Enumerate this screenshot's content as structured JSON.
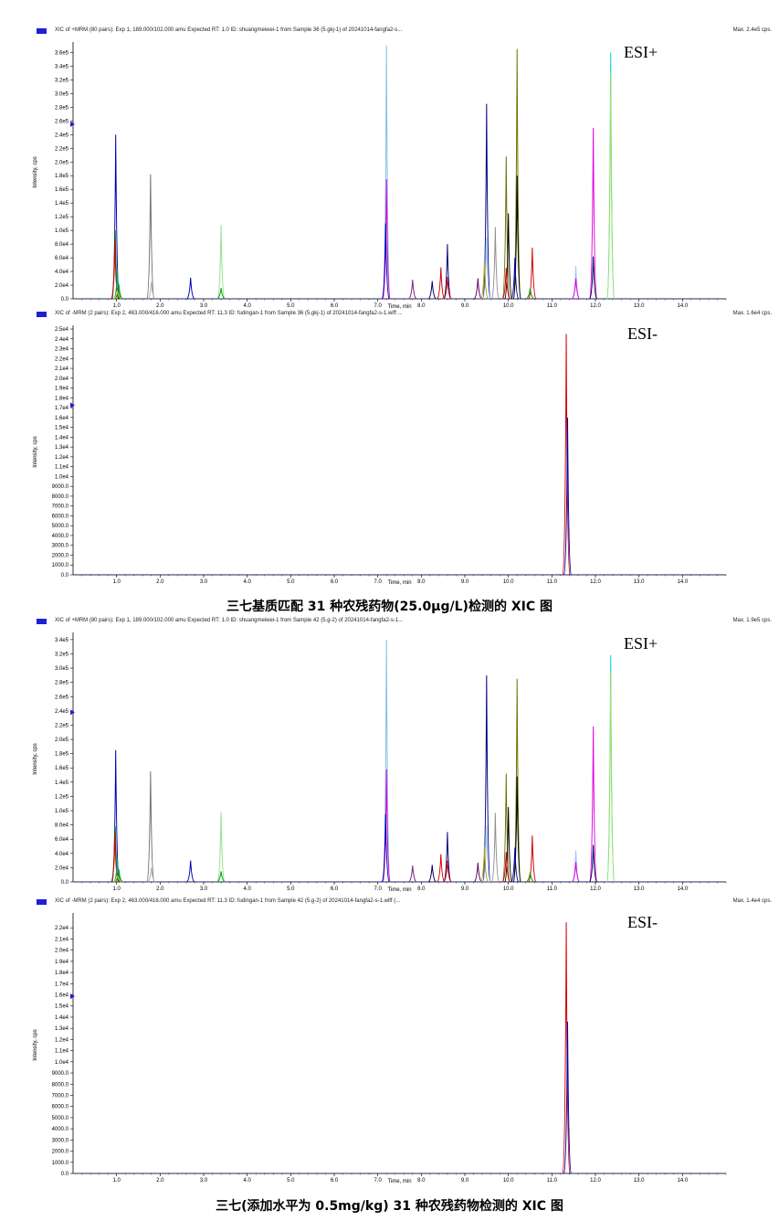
{
  "captions": {
    "first": "三七基质匹配 31 种农残药物(25.0μg/L)检测的 XIC 图",
    "second": "三七(添加水平为 0.5mg/kg) 31 种农残药物检测的 XIC 图"
  },
  "common": {
    "ylabel": "Intensity, cps",
    "xlabel": "Time, min"
  },
  "chart_data": [
    {
      "type": "line",
      "title": "XIC of +MRM (80 pairs): Exp 1, 189.000/102.000 amu Expected RT: 1.0 ID: shuangmeiwei-1 from Sample 36 (5.gkj-1) of 20241014-fangfa2-s...",
      "max_label": "Max. 2.4e5 cps.",
      "tag": "ESI+",
      "xlabel": "Time, min",
      "ylabel": "Intensity, cps",
      "xlim": [
        0,
        15.0
      ],
      "ylim": [
        0,
        370000
      ],
      "xticks": [
        "1.0",
        "2.0",
        "3.0",
        "4.0",
        "5.0",
        "6.0",
        "7.0",
        "8.0",
        "9.0",
        "10.0",
        "11.0",
        "12.0",
        "13.0",
        "14.0"
      ],
      "yticks": [
        "0.0",
        "2.0e4",
        "4.0e4",
        "6.0e4",
        "8.0e4",
        "1.0e5",
        "1.2e5",
        "1.4e5",
        "1.6e5",
        "1.8e5",
        "2.0e5",
        "2.2e5",
        "2.4e5",
        "2.6e5",
        "2.8e5",
        "3.0e5",
        "3.2e5",
        "3.4e5",
        "3.6e5"
      ],
      "peaks": [
        {
          "rt": 0.98,
          "h": 240000,
          "color": "#0000b0"
        },
        {
          "rt": 0.97,
          "h": 100000,
          "color": "#008800"
        },
        {
          "rt": 0.96,
          "h": 85000,
          "color": "#d00000"
        },
        {
          "rt": 1.02,
          "h": 42000,
          "color": "#00a0a0"
        },
        {
          "rt": 1.05,
          "h": 22000,
          "color": "#00a000"
        },
        {
          "rt": 1.02,
          "h": 12000,
          "color": "#d0d000"
        },
        {
          "rt": 1.78,
          "h": 182000,
          "color": "#707070"
        },
        {
          "rt": 1.8,
          "h": 25000,
          "color": "#b0b0b0"
        },
        {
          "rt": 2.7,
          "h": 31000,
          "color": "#0000b0"
        },
        {
          "rt": 3.4,
          "h": 108000,
          "color": "#90e090"
        },
        {
          "rt": 3.4,
          "h": 16000,
          "color": "#00a000"
        },
        {
          "rt": 7.2,
          "h": 370000,
          "color": "#80c0e0"
        },
        {
          "rt": 7.2,
          "h": 175000,
          "color": "#e000e0"
        },
        {
          "rt": 7.18,
          "h": 110000,
          "color": "#0000b0"
        },
        {
          "rt": 7.8,
          "h": 28000,
          "color": "#802080"
        },
        {
          "rt": 8.25,
          "h": 26000,
          "color": "#000060"
        },
        {
          "rt": 8.45,
          "h": 46000,
          "color": "#d00000"
        },
        {
          "rt": 8.6,
          "h": 80000,
          "color": "#000080"
        },
        {
          "rt": 8.6,
          "h": 32000,
          "color": "#d00000"
        },
        {
          "rt": 9.3,
          "h": 30000,
          "color": "#600060"
        },
        {
          "rt": 9.5,
          "h": 285000,
          "color": "#000080"
        },
        {
          "rt": 9.5,
          "h": 90000,
          "color": "#a0d0ff"
        },
        {
          "rt": 9.45,
          "h": 55000,
          "color": "#c0a000"
        },
        {
          "rt": 9.7,
          "h": 105000,
          "color": "#909090"
        },
        {
          "rt": 9.95,
          "h": 208000,
          "color": "#707000"
        },
        {
          "rt": 10.0,
          "h": 125000,
          "color": "#000000"
        },
        {
          "rt": 10.2,
          "h": 365000,
          "color": "#707000"
        },
        {
          "rt": 10.2,
          "h": 180000,
          "color": "#000000"
        },
        {
          "rt": 10.15,
          "h": 60000,
          "color": "#0000b0"
        },
        {
          "rt": 9.95,
          "h": 45000,
          "color": "#d00000"
        },
        {
          "rt": 10.55,
          "h": 75000,
          "color": "#d00000"
        },
        {
          "rt": 10.5,
          "h": 15000,
          "color": "#00a000"
        },
        {
          "rt": 11.55,
          "h": 48000,
          "color": "#a0c0ff"
        },
        {
          "rt": 11.55,
          "h": 30000,
          "color": "#e000e0"
        },
        {
          "rt": 11.95,
          "h": 250000,
          "color": "#e000e0"
        },
        {
          "rt": 11.95,
          "h": 62000,
          "color": "#000060"
        },
        {
          "rt": 12.35,
          "h": 360000,
          "color": "#00d0e0"
        },
        {
          "rt": 12.35,
          "h": 330000,
          "color": "#a0e060"
        }
      ]
    },
    {
      "type": "line",
      "title": "XIC of -MRM (2 pairs): Exp 2, 463.000/416.000 amu Expected RT: 11.3 ID: fudingan-1 from Sample 36 (5.gkj-1) of 20241014-fangfa2-s-1.wiff ...",
      "max_label": "Max. 1.6e4 cps.",
      "tag": "ESI-",
      "xlabel": "Time, min",
      "ylabel": "Intensity, cps",
      "xlim": [
        0,
        15.0
      ],
      "ylim": [
        0,
        25000
      ],
      "xticks": [
        "1.0",
        "2.0",
        "3.0",
        "4.0",
        "5.0",
        "6.0",
        "7.0",
        "8.0",
        "9.0",
        "10.0",
        "11.0",
        "12.0",
        "13.0",
        "14.0"
      ],
      "yticks": [
        "0.0",
        "1000.0",
        "2000.0",
        "3000.0",
        "4000.0",
        "5000.0",
        "6000.0",
        "7000.0",
        "8000.0",
        "9000.0",
        "1.0e4",
        "1.1e4",
        "1.2e4",
        "1.3e4",
        "1.4e4",
        "1.5e4",
        "1.6e4",
        "1.7e4",
        "1.8e4",
        "1.9e4",
        "2.0e4",
        "2.1e4",
        "2.2e4",
        "2.3e4",
        "2.4e4",
        "2.5e4"
      ],
      "peaks": [
        {
          "rt": 11.33,
          "h": 24500,
          "color": "#d00000"
        },
        {
          "rt": 11.36,
          "h": 16000,
          "color": "#0000b0"
        }
      ]
    },
    {
      "type": "line",
      "title": "XIC of +MRM (80 pairs): Exp 1, 189.000/102.000 amu Expected RT: 1.0 ID: shuangmeiwei-1 from Sample 42 (5.g-2) of 20241014-fangfa2-s-1...",
      "max_label": "Max. 1.9e5 cps.",
      "tag": "ESI+",
      "xlabel": "Time, min",
      "ylabel": "Intensity, cps",
      "xlim": [
        0,
        15.0
      ],
      "ylim": [
        0,
        345000
      ],
      "xticks": [
        "1.0",
        "2.0",
        "3.0",
        "4.0",
        "5.0",
        "6.0",
        "7.0",
        "8.0",
        "9.0",
        "10.0",
        "11.0",
        "12.0",
        "13.0",
        "14.0"
      ],
      "yticks": [
        "0.0",
        "2.0e4",
        "4.0e4",
        "6.0e4",
        "8.0e4",
        "1.0e5",
        "1.2e5",
        "1.4e5",
        "1.6e5",
        "1.8e5",
        "2.0e5",
        "2.2e5",
        "2.4e5",
        "2.6e5",
        "2.8e5",
        "3.0e5",
        "3.2e5",
        "3.4e5"
      ],
      "peaks": [
        {
          "rt": 0.98,
          "h": 185000,
          "color": "#0000b0"
        },
        {
          "rt": 0.97,
          "h": 78000,
          "color": "#008800"
        },
        {
          "rt": 0.96,
          "h": 68000,
          "color": "#d00000"
        },
        {
          "rt": 1.02,
          "h": 32000,
          "color": "#00a0a0"
        },
        {
          "rt": 1.05,
          "h": 18000,
          "color": "#00a000"
        },
        {
          "rt": 1.02,
          "h": 9000,
          "color": "#d0d000"
        },
        {
          "rt": 1.78,
          "h": 155000,
          "color": "#707070"
        },
        {
          "rt": 1.8,
          "h": 20000,
          "color": "#b0b0b0"
        },
        {
          "rt": 2.7,
          "h": 30000,
          "color": "#0000b0"
        },
        {
          "rt": 3.4,
          "h": 98000,
          "color": "#90e090"
        },
        {
          "rt": 3.4,
          "h": 15000,
          "color": "#00a000"
        },
        {
          "rt": 7.2,
          "h": 340000,
          "color": "#80c0e0"
        },
        {
          "rt": 7.2,
          "h": 158000,
          "color": "#e000e0"
        },
        {
          "rt": 7.18,
          "h": 95000,
          "color": "#0000b0"
        },
        {
          "rt": 7.8,
          "h": 23000,
          "color": "#802080"
        },
        {
          "rt": 8.25,
          "h": 24000,
          "color": "#000060"
        },
        {
          "rt": 8.45,
          "h": 39000,
          "color": "#d00000"
        },
        {
          "rt": 8.6,
          "h": 70000,
          "color": "#000080"
        },
        {
          "rt": 8.6,
          "h": 30000,
          "color": "#d00000"
        },
        {
          "rt": 9.3,
          "h": 27000,
          "color": "#600060"
        },
        {
          "rt": 9.5,
          "h": 290000,
          "color": "#000080"
        },
        {
          "rt": 9.5,
          "h": 80000,
          "color": "#a0d0ff"
        },
        {
          "rt": 9.45,
          "h": 50000,
          "color": "#c0a000"
        },
        {
          "rt": 9.7,
          "h": 97000,
          "color": "#909090"
        },
        {
          "rt": 9.95,
          "h": 152000,
          "color": "#707000"
        },
        {
          "rt": 10.0,
          "h": 105000,
          "color": "#000000"
        },
        {
          "rt": 10.2,
          "h": 285000,
          "color": "#707000"
        },
        {
          "rt": 10.2,
          "h": 148000,
          "color": "#000000"
        },
        {
          "rt": 10.15,
          "h": 48000,
          "color": "#0000b0"
        },
        {
          "rt": 9.95,
          "h": 42000,
          "color": "#d00000"
        },
        {
          "rt": 10.55,
          "h": 65000,
          "color": "#d00000"
        },
        {
          "rt": 10.5,
          "h": 13000,
          "color": "#00a000"
        },
        {
          "rt": 11.55,
          "h": 44000,
          "color": "#a0c0ff"
        },
        {
          "rt": 11.55,
          "h": 28000,
          "color": "#e000e0"
        },
        {
          "rt": 11.95,
          "h": 218000,
          "color": "#e000e0"
        },
        {
          "rt": 11.95,
          "h": 52000,
          "color": "#000060"
        },
        {
          "rt": 12.35,
          "h": 318000,
          "color": "#00d0e0"
        },
        {
          "rt": 12.35,
          "h": 295000,
          "color": "#a0e060"
        }
      ]
    },
    {
      "type": "line",
      "title": "XIC of -MRM (2 pairs): Exp 2, 463.000/416.000 amu Expected RT: 11.3 ID: fudingan-1 from Sample 42 (5.g-2) of 20241014-fangfa2-s-1.wiff (...",
      "max_label": "Max. 1.4e4 cps.",
      "tag": "ESI-",
      "xlabel": "Time, min",
      "ylabel": "Intensity, cps",
      "xlim": [
        0,
        15.0
      ],
      "ylim": [
        0,
        23000
      ],
      "xticks": [
        "1.0",
        "2.0",
        "3.0",
        "4.0",
        "5.0",
        "6.0",
        "7.0",
        "8.0",
        "9.0",
        "10.0",
        "11.0",
        "12.0",
        "13.0",
        "14.0"
      ],
      "yticks": [
        "0.0",
        "1000.0",
        "2000.0",
        "3000.0",
        "4000.0",
        "5000.0",
        "6000.0",
        "7000.0",
        "8000.0",
        "9000.0",
        "1.0e4",
        "1.1e4",
        "1.2e4",
        "1.3e4",
        "1.4e4",
        "1.5e4",
        "1.6e4",
        "1.7e4",
        "1.8e4",
        "1.9e4",
        "2.0e4",
        "2.1e4",
        "2.2e4"
      ],
      "peaks": [
        {
          "rt": 11.33,
          "h": 22500,
          "color": "#d00000"
        },
        {
          "rt": 11.36,
          "h": 13600,
          "color": "#0000b0"
        }
      ]
    }
  ]
}
